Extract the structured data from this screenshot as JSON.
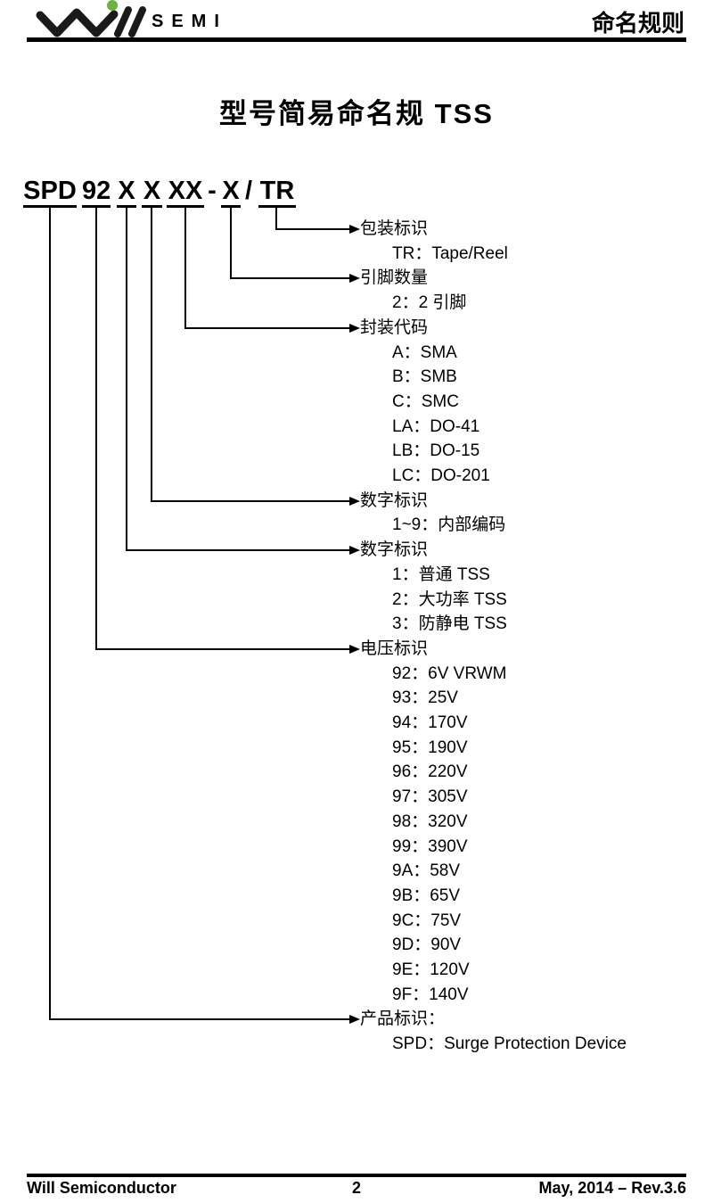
{
  "header": {
    "logo_brand": "Will",
    "logo_sub": "SEMI",
    "page_tag": "命名规则",
    "logo_dot_color": "#6ab33c",
    "logo_color": "#1a1a1a"
  },
  "title": "型号简易命名规 TSS",
  "part_number": {
    "segments": [
      {
        "text": "SPD",
        "underline": true
      },
      {
        "text": "92",
        "underline": true
      },
      {
        "text": "X",
        "underline": true
      },
      {
        "text": "X",
        "underline": true
      },
      {
        "text": "XX",
        "underline": true
      },
      {
        "text": "-",
        "underline": false
      },
      {
        "text": "X",
        "underline": true
      },
      {
        "text": "/",
        "underline": false
      },
      {
        "text": "TR",
        "underline": true
      }
    ]
  },
  "sections": [
    {
      "label": "包装标识",
      "items": [
        "TR：Tape/Reel"
      ]
    },
    {
      "label": "引脚数量",
      "items": [
        "2：2 引脚"
      ]
    },
    {
      "label": "封装代码",
      "items": [
        "A：SMA",
        "B：SMB",
        "C：SMC",
        "LA：DO-41",
        "LB：DO-15",
        "LC：DO-201"
      ]
    },
    {
      "label": "数字标识",
      "items": [
        "1~9：内部编码"
      ]
    },
    {
      "label": "数字标识",
      "items": [
        "1：普通 TSS",
        "2：大功率 TSS",
        "3：防静电 TSS"
      ]
    },
    {
      "label": "电压标识",
      "items": [
        "92：6V VRWM",
        "93：25V",
        "94：170V",
        "95：190V",
        "96：220V",
        "97：305V",
        "98：320V",
        "99：390V",
        "9A：58V",
        "9B：65V",
        "9C：75V",
        "9D：90V",
        "9E：120V",
        "9F：140V"
      ]
    },
    {
      "label": "产品标识：",
      "items": [
        "SPD：Surge Protection Device"
      ]
    }
  ],
  "footer": {
    "company": "Will Semiconductor",
    "page_number": "2",
    "revision": "May, 2014 – Rev.3.6"
  }
}
